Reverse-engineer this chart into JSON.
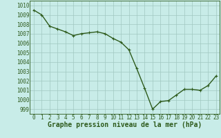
{
  "x": [
    0,
    1,
    2,
    3,
    4,
    5,
    6,
    7,
    8,
    9,
    10,
    11,
    12,
    13,
    14,
    15,
    16,
    17,
    18,
    19,
    20,
    21,
    22,
    23
  ],
  "y": [
    1009.5,
    1009.0,
    1007.8,
    1007.5,
    1007.2,
    1006.8,
    1007.0,
    1007.1,
    1007.2,
    1007.0,
    1006.5,
    1006.1,
    1005.3,
    1003.3,
    1001.2,
    999.0,
    999.8,
    999.9,
    1000.5,
    1001.1,
    1001.1,
    1001.0,
    1001.5,
    1002.5
  ],
  "line_color": "#2d5a1b",
  "marker": "+",
  "marker_size": 3,
  "line_width": 1.0,
  "bg_color": "#c8ece8",
  "grid_color": "#a0c8c0",
  "ylabel_ticks": [
    999,
    1000,
    1001,
    1002,
    1003,
    1004,
    1005,
    1006,
    1007,
    1008,
    1009,
    1010
  ],
  "ylim": [
    998.5,
    1010.5
  ],
  "xlim": [
    -0.5,
    23.5
  ],
  "xlabel": "Graphe pression niveau de la mer (hPa)",
  "xlabel_fontsize": 7,
  "tick_fontsize": 5.5,
  "axes_color": "#2d5a1b",
  "label_color": "#2d5a1b"
}
